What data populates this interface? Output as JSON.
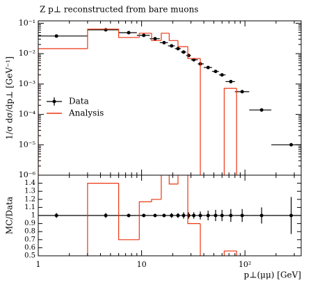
{
  "chart_data": {
    "type": "histogram_ratio",
    "title": "Z p⊥ reconstructed from bare muons",
    "ylabel": "1/σ dσ/dp⊥ [GeV⁻¹]",
    "ratio_ylabel": "MC/Data",
    "xlabel": "p⊥(μμ) [GeV]",
    "xscale": "log",
    "yscale": "log",
    "xlim": [
      1,
      350
    ],
    "ylim": [
      1e-06,
      0.12
    ],
    "ratio_ylim": [
      0.5,
      1.5
    ],
    "xticks": [
      1,
      10,
      {
        "value": 100,
        "label": "10²"
      }
    ],
    "yticks": [
      {
        "value": 1e-06,
        "label": "10⁻⁶"
      },
      {
        "value": 1e-05,
        "label": "10⁻⁵"
      },
      {
        "value": 0.0001,
        "label": "10⁻⁴"
      },
      {
        "value": 0.001,
        "label": "10⁻³"
      },
      {
        "value": 0.01,
        "label": "10⁻²"
      },
      {
        "value": 0.1,
        "label": "10⁻¹"
      }
    ],
    "ratio_yticks": [
      0.5,
      0.6,
      0.7,
      0.8,
      0.9,
      1,
      1.1,
      1.2,
      1.3,
      1.4
    ],
    "legend": "left",
    "series": [
      {
        "name": "Data",
        "color": "#000000",
        "bin_edges": [
          1,
          3,
          6,
          9,
          12,
          15,
          18,
          21,
          24,
          27,
          30,
          35,
          40,
          48,
          56,
          65,
          80,
          110,
          180,
          350
        ],
        "x": [
          1.5,
          4.5,
          7.5,
          10.5,
          13.5,
          16.5,
          19.5,
          22.5,
          25.5,
          28.5,
          32,
          37,
          44,
          52,
          60,
          73,
          94,
          145,
          280
        ],
        "values": [
          0.038,
          0.061,
          0.049,
          0.04,
          0.031,
          0.023,
          0.018,
          0.0146,
          0.0113,
          0.0087,
          0.0063,
          0.0046,
          0.0035,
          0.0026,
          0.002,
          0.0012,
          0.00056,
          0.00014,
          1e-05
        ],
        "ratio_values": [
          1,
          1,
          1,
          1,
          1,
          1,
          1,
          1,
          1,
          1,
          1,
          1,
          1,
          1,
          1,
          1,
          1,
          1,
          1
        ],
        "ratio_errors": [
          0.03,
          0.03,
          0.02,
          0.02,
          0.02,
          0.02,
          0.03,
          0.03,
          0.04,
          0.04,
          0.04,
          0.05,
          0.06,
          0.07,
          0.07,
          0.08,
          0.08,
          0.1,
          0.23
        ]
      },
      {
        "name": "Analysis",
        "color": "#ee3311",
        "bin_edges": [
          1,
          3,
          6,
          9.5,
          12.5,
          15.5,
          18.5,
          22.5,
          28,
          37,
          63,
          83,
          350
        ],
        "values": [
          0.0146,
          0.064,
          0.034,
          0.047,
          0.027,
          0.047,
          0.027,
          0.017,
          0.0069,
          0,
          0.00072,
          0
        ],
        "ratio_values": [
          0.38,
          1.4,
          0.7,
          1.17,
          1.2,
          1.52,
          1.39,
          1.6,
          0.9,
          0,
          0.56,
          0
        ]
      }
    ]
  }
}
